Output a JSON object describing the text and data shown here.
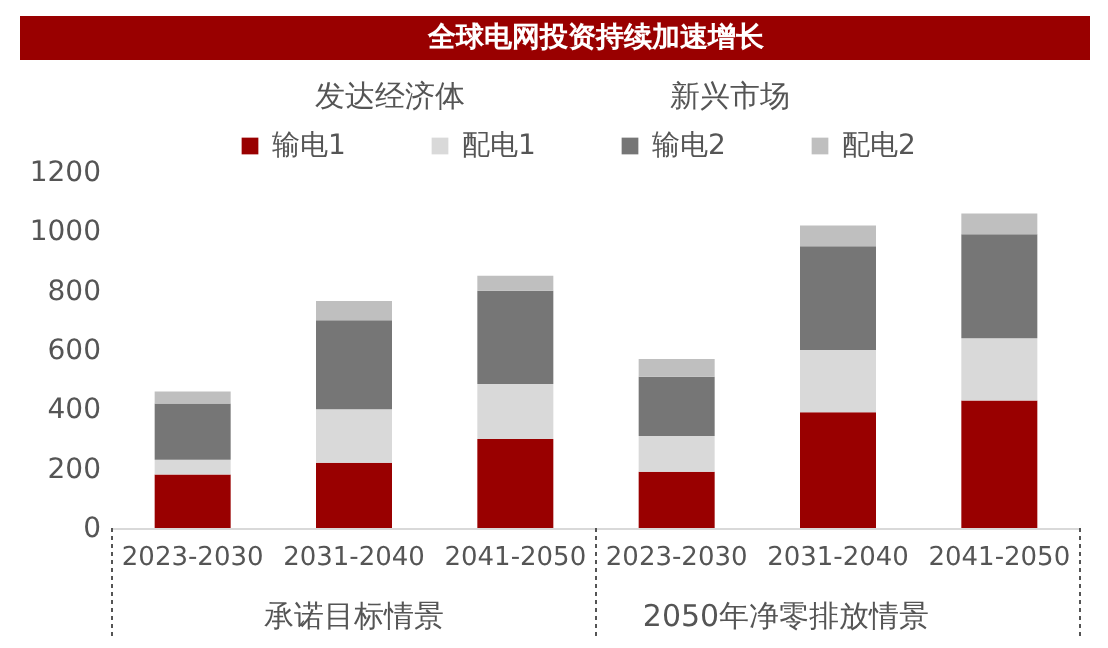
{
  "chart_data": {
    "type": "bar",
    "title": "全球电网投资持续加速增长",
    "stacked": true,
    "categories": [
      "2023-2030",
      "2031-2040",
      "2041-2050",
      "2023-2030",
      "2031-2040",
      "2041-2050"
    ],
    "series": [
      {
        "name": "输电1",
        "color": "#990000",
        "values": [
          180,
          220,
          300,
          190,
          390,
          430
        ]
      },
      {
        "name": "配电1",
        "color": "#d9d9d9",
        "values": [
          50,
          180,
          185,
          120,
          210,
          210
        ]
      },
      {
        "name": "输电2",
        "color": "#767676",
        "values": [
          190,
          300,
          315,
          200,
          350,
          350
        ]
      },
      {
        "name": "配电2",
        "color": "#bfbfbf",
        "values": [
          40,
          65,
          50,
          60,
          70,
          70
        ]
      }
    ],
    "ylim": [
      0,
      1200
    ],
    "yticks": [
      0,
      200,
      400,
      600,
      800,
      1000,
      1200
    ],
    "grid": false,
    "legend": "top",
    "annotations": [
      "发达经济体",
      "新兴市场",
      "承诺目标情景",
      "2050年净零排放情景"
    ]
  }
}
